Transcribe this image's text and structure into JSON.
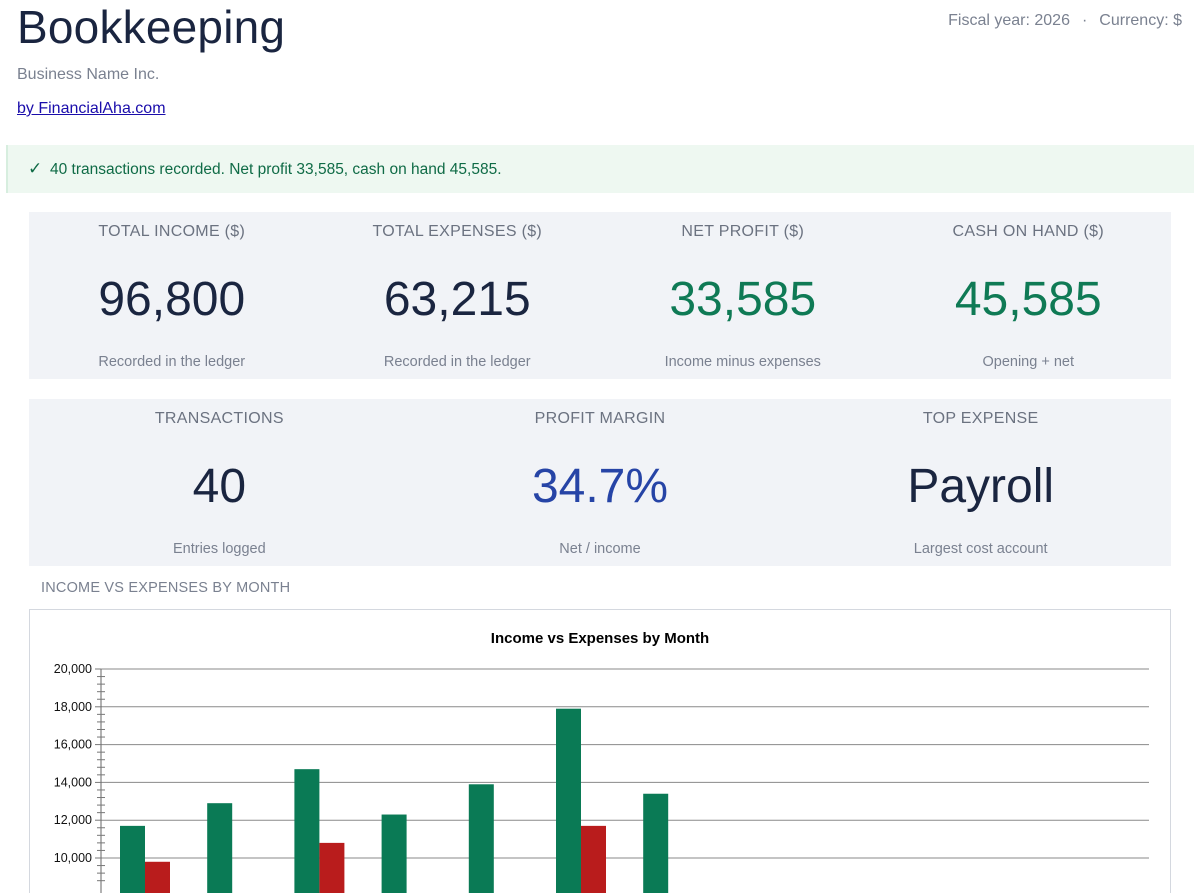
{
  "header": {
    "title": "Bookkeeping",
    "fiscal_year": "Fiscal year: 2026",
    "separator": "·",
    "currency": "Currency: $",
    "business_name": "Business Name Inc.",
    "byline": "by FinancialAha.com"
  },
  "banner": {
    "icon": "checkmark-icon",
    "check": "✓",
    "message": "40 transactions recorded. Net profit 33,585, cash on hand 45,585."
  },
  "kpis_row1": [
    {
      "label": "TOTAL INCOME ($)",
      "value": "96,800",
      "sub": "Recorded in the ledger"
    },
    {
      "label": "TOTAL EXPENSES ($)",
      "value": "63,215",
      "sub": "Recorded in the ledger"
    },
    {
      "label": "NET PROFIT ($)",
      "value": "33,585",
      "sub": "Income minus expenses"
    },
    {
      "label": "CASH ON HAND ($)",
      "value": "45,585",
      "sub": "Opening + net"
    }
  ],
  "kpis_row2": [
    {
      "label": "TRANSACTIONS",
      "value": "40",
      "sub": "Entries logged"
    },
    {
      "label": "PROFIT MARGIN",
      "value": "34.7%",
      "sub": "Net / income"
    },
    {
      "label": "TOP EXPENSE",
      "value": "Payroll",
      "sub": "Largest cost account"
    }
  ],
  "colors": {
    "income": "#0a7a55",
    "expense": "#b91c1c",
    "positive": "#0f7a55",
    "margin": "#2644a6"
  },
  "section_title": "INCOME VS EXPENSES BY MONTH",
  "chart_data": {
    "type": "bar",
    "title": "Income vs Expenses by Month",
    "y_ticks": [
      "20,000",
      "18,000",
      "16,000",
      "14,000",
      "12,000",
      "10,000"
    ],
    "ylim_visible": [
      9000,
      20000
    ],
    "grid": true,
    "series": [
      {
        "values": [
          11700,
          12900,
          14700,
          12300,
          13900,
          17900,
          13400,
          null,
          null,
          null,
          null,
          null
        ]
      },
      {
        "values": [
          9800,
          null,
          10800,
          null,
          null,
          11700,
          null,
          null,
          null,
          null,
          null,
          null
        ]
      }
    ]
  }
}
